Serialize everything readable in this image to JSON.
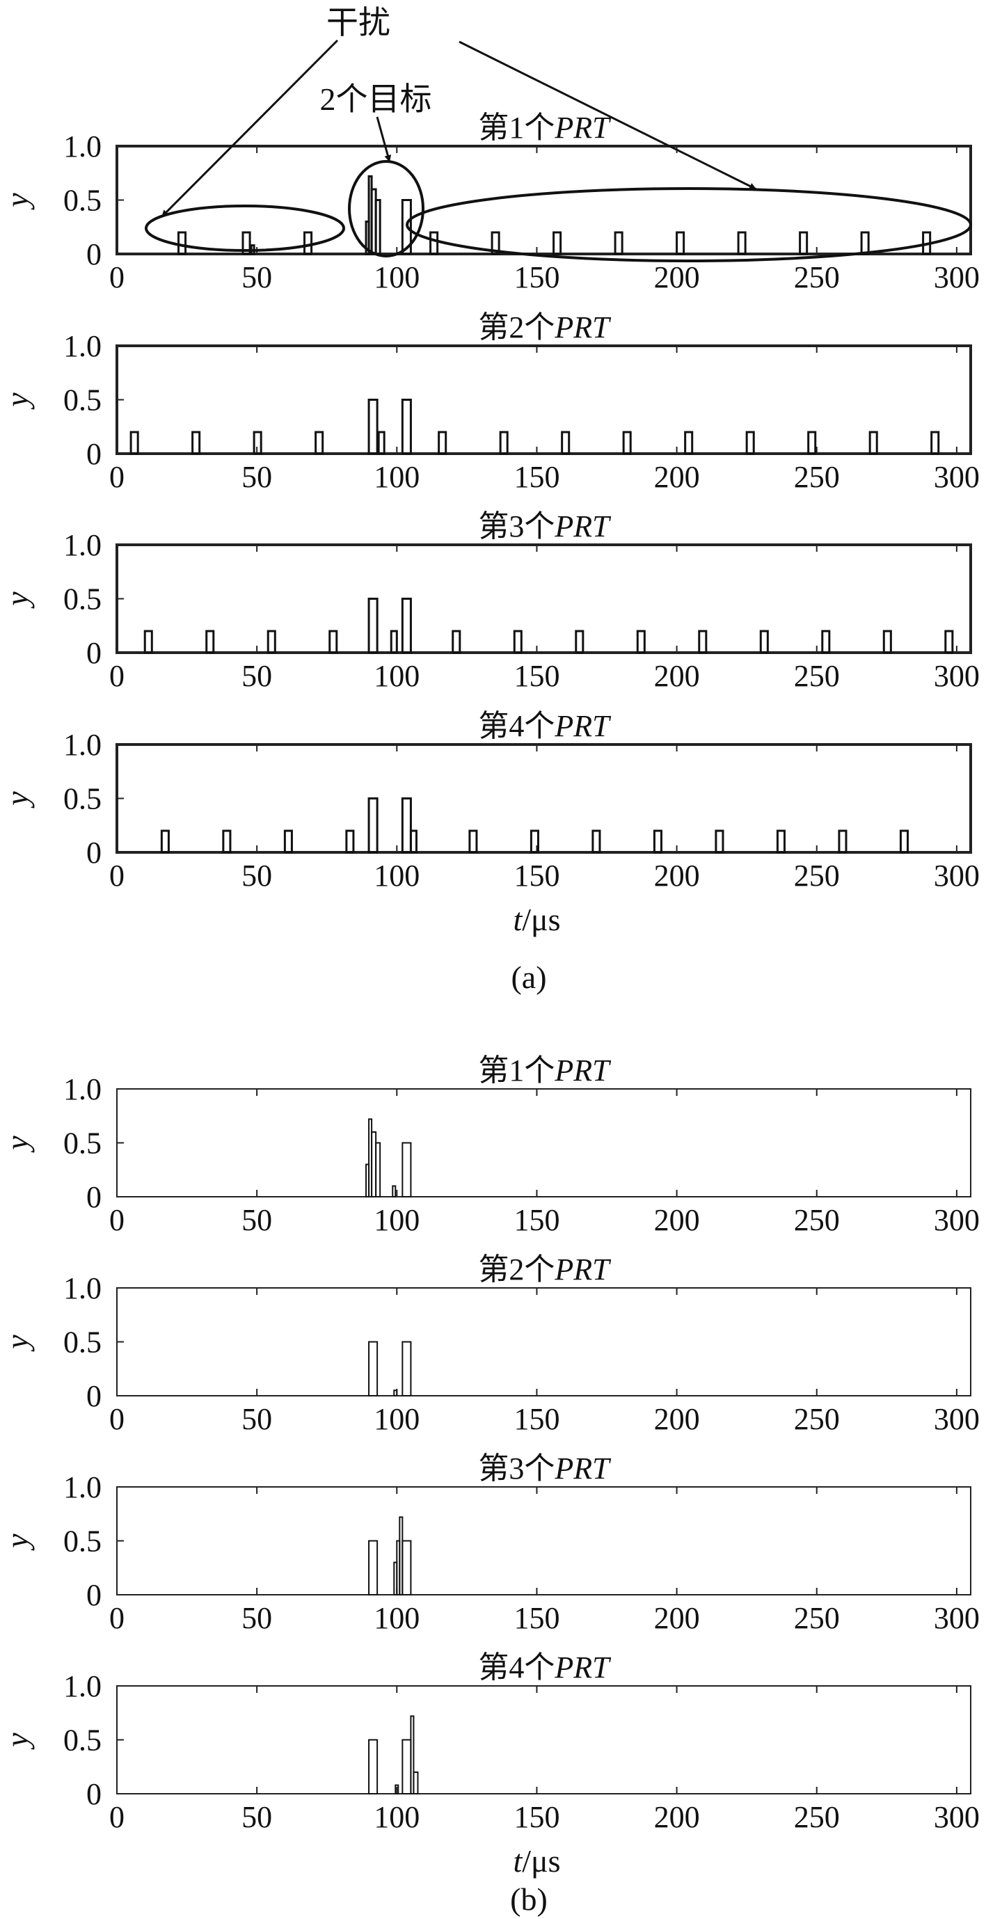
{
  "annotations": {
    "interference": "干扰",
    "two_targets": "2个目标"
  },
  "chart_data": [
    {
      "group": "a",
      "type": "line",
      "title_prefix": "第1个",
      "title_emph": "PRT",
      "ylabel": "y",
      "xlabel": "",
      "xlim": [
        0,
        305
      ],
      "ylim": [
        0,
        1.0
      ],
      "yticks": [
        "0",
        "0.5",
        "1.0"
      ],
      "xticks": [
        "0",
        "50",
        "100",
        "150",
        "200",
        "250",
        "300"
      ],
      "pulses": [
        {
          "x": 22,
          "w": 2.5,
          "h": 0.2
        },
        {
          "x": 45,
          "w": 2.5,
          "h": 0.2
        },
        {
          "x": 48,
          "w": 1,
          "h": 0.08
        },
        {
          "x": 67,
          "w": 2.5,
          "h": 0.2
        },
        {
          "x": 89,
          "w": 1,
          "h": 0.3
        },
        {
          "x": 90,
          "w": 1,
          "h": 0.72
        },
        {
          "x": 91,
          "w": 1.5,
          "h": 0.6
        },
        {
          "x": 92.5,
          "w": 1.5,
          "h": 0.5
        },
        {
          "x": 102,
          "w": 3,
          "h": 0.5
        },
        {
          "x": 112,
          "w": 2.5,
          "h": 0.2
        },
        {
          "x": 134,
          "w": 2.5,
          "h": 0.2
        },
        {
          "x": 156,
          "w": 2.5,
          "h": 0.2
        },
        {
          "x": 178,
          "w": 2.5,
          "h": 0.2
        },
        {
          "x": 200,
          "w": 2.5,
          "h": 0.2
        },
        {
          "x": 222,
          "w": 2.5,
          "h": 0.2
        },
        {
          "x": 244,
          "w": 2.5,
          "h": 0.2
        },
        {
          "x": 266,
          "w": 2.5,
          "h": 0.2
        },
        {
          "x": 288,
          "w": 2.5,
          "h": 0.2
        }
      ]
    },
    {
      "group": "a",
      "type": "line",
      "title_prefix": "第2个",
      "title_emph": "PRT",
      "ylabel": "y",
      "xlabel": "",
      "xlim": [
        0,
        305
      ],
      "ylim": [
        0,
        1.0
      ],
      "yticks": [
        "0",
        "0.5",
        "1.0"
      ],
      "xticks": [
        "0",
        "50",
        "100",
        "150",
        "200",
        "250",
        "300"
      ],
      "pulses": [
        {
          "x": 5,
          "w": 2.5,
          "h": 0.2
        },
        {
          "x": 27,
          "w": 2.5,
          "h": 0.2
        },
        {
          "x": 49,
          "w": 2.5,
          "h": 0.2
        },
        {
          "x": 71,
          "w": 2.5,
          "h": 0.2
        },
        {
          "x": 90,
          "w": 3,
          "h": 0.5
        },
        {
          "x": 93.5,
          "w": 2,
          "h": 0.2
        },
        {
          "x": 102,
          "w": 3,
          "h": 0.5
        },
        {
          "x": 115,
          "w": 2.5,
          "h": 0.2
        },
        {
          "x": 137,
          "w": 2.5,
          "h": 0.2
        },
        {
          "x": 159,
          "w": 2.5,
          "h": 0.2
        },
        {
          "x": 181,
          "w": 2.5,
          "h": 0.2
        },
        {
          "x": 203,
          "w": 2.5,
          "h": 0.2
        },
        {
          "x": 225,
          "w": 2.5,
          "h": 0.2
        },
        {
          "x": 247,
          "w": 2.5,
          "h": 0.2
        },
        {
          "x": 269,
          "w": 2.5,
          "h": 0.2
        },
        {
          "x": 291,
          "w": 2.5,
          "h": 0.2
        }
      ]
    },
    {
      "group": "a",
      "type": "line",
      "title_prefix": "第3个",
      "title_emph": "PRT",
      "ylabel": "y",
      "xlabel": "",
      "xlim": [
        0,
        305
      ],
      "ylim": [
        0,
        1.0
      ],
      "yticks": [
        "0",
        "0.5",
        "1.0"
      ],
      "xticks": [
        "0",
        "50",
        "100",
        "150",
        "200",
        "250",
        "300"
      ],
      "pulses": [
        {
          "x": 10,
          "w": 2.5,
          "h": 0.2
        },
        {
          "x": 32,
          "w": 2.5,
          "h": 0.2
        },
        {
          "x": 54,
          "w": 2.5,
          "h": 0.2
        },
        {
          "x": 76,
          "w": 2.5,
          "h": 0.2
        },
        {
          "x": 90,
          "w": 3,
          "h": 0.5
        },
        {
          "x": 98,
          "w": 2,
          "h": 0.2
        },
        {
          "x": 102,
          "w": 3,
          "h": 0.5
        },
        {
          "x": 120,
          "w": 2.5,
          "h": 0.2
        },
        {
          "x": 142,
          "w": 2.5,
          "h": 0.2
        },
        {
          "x": 164,
          "w": 2.5,
          "h": 0.2
        },
        {
          "x": 186,
          "w": 2.5,
          "h": 0.2
        },
        {
          "x": 208,
          "w": 2.5,
          "h": 0.2
        },
        {
          "x": 230,
          "w": 2.5,
          "h": 0.2
        },
        {
          "x": 252,
          "w": 2.5,
          "h": 0.2
        },
        {
          "x": 274,
          "w": 2.5,
          "h": 0.2
        },
        {
          "x": 296,
          "w": 2.5,
          "h": 0.2
        }
      ]
    },
    {
      "group": "a",
      "type": "line",
      "title_prefix": "第4个",
      "title_emph": "PRT",
      "ylabel": "y",
      "xlabel": "t/μs",
      "xlim": [
        0,
        305
      ],
      "ylim": [
        0,
        1.0
      ],
      "yticks": [
        "0",
        "0.5",
        "1.0"
      ],
      "xticks": [
        "0",
        "50",
        "100",
        "150",
        "200",
        "250",
        "300"
      ],
      "pulses": [
        {
          "x": 16,
          "w": 2.5,
          "h": 0.2
        },
        {
          "x": 38,
          "w": 2.5,
          "h": 0.2
        },
        {
          "x": 60,
          "w": 2.5,
          "h": 0.2
        },
        {
          "x": 82,
          "w": 2.5,
          "h": 0.2
        },
        {
          "x": 90,
          "w": 3,
          "h": 0.5
        },
        {
          "x": 102,
          "w": 3,
          "h": 0.5
        },
        {
          "x": 105,
          "w": 2,
          "h": 0.2
        },
        {
          "x": 126,
          "w": 2.5,
          "h": 0.2
        },
        {
          "x": 148,
          "w": 2.5,
          "h": 0.2
        },
        {
          "x": 170,
          "w": 2.5,
          "h": 0.2
        },
        {
          "x": 192,
          "w": 2.5,
          "h": 0.2
        },
        {
          "x": 214,
          "w": 2.5,
          "h": 0.2
        },
        {
          "x": 236,
          "w": 2.5,
          "h": 0.2
        },
        {
          "x": 258,
          "w": 2.5,
          "h": 0.2
        },
        {
          "x": 280,
          "w": 2.5,
          "h": 0.2
        }
      ]
    },
    {
      "group": "b",
      "type": "line",
      "title_prefix": "第1个",
      "title_emph": "PRT",
      "ylabel": "y",
      "xlabel": "",
      "xlim": [
        0,
        305
      ],
      "ylim": [
        0,
        1.0
      ],
      "yticks": [
        "0",
        "0.5",
        "1.0"
      ],
      "xticks": [
        "0",
        "50",
        "100",
        "150",
        "200",
        "250",
        "300"
      ],
      "pulses": [
        {
          "x": 89,
          "w": 1,
          "h": 0.3
        },
        {
          "x": 90,
          "w": 1,
          "h": 0.72
        },
        {
          "x": 91,
          "w": 1.5,
          "h": 0.6
        },
        {
          "x": 92.5,
          "w": 1.5,
          "h": 0.5
        },
        {
          "x": 98.5,
          "w": 1,
          "h": 0.1
        },
        {
          "x": 102,
          "w": 3,
          "h": 0.5
        }
      ]
    },
    {
      "group": "b",
      "type": "line",
      "title_prefix": "第2个",
      "title_emph": "PRT",
      "ylabel": "y",
      "xlabel": "",
      "xlim": [
        0,
        305
      ],
      "ylim": [
        0,
        1.0
      ],
      "yticks": [
        "0",
        "0.5",
        "1.0"
      ],
      "xticks": [
        "0",
        "50",
        "100",
        "150",
        "200",
        "250",
        "300"
      ],
      "pulses": [
        {
          "x": 90,
          "w": 3,
          "h": 0.5
        },
        {
          "x": 99,
          "w": 1,
          "h": 0.05
        },
        {
          "x": 102,
          "w": 3,
          "h": 0.5
        }
      ]
    },
    {
      "group": "b",
      "type": "line",
      "title_prefix": "第3个",
      "title_emph": "PRT",
      "ylabel": "y",
      "xlabel": "",
      "xlim": [
        0,
        305
      ],
      "ylim": [
        0,
        1.0
      ],
      "yticks": [
        "0",
        "0.5",
        "1.0"
      ],
      "xticks": [
        "0",
        "50",
        "100",
        "150",
        "200",
        "250",
        "300"
      ],
      "pulses": [
        {
          "x": 90,
          "w": 3,
          "h": 0.5
        },
        {
          "x": 99,
          "w": 1,
          "h": 0.3
        },
        {
          "x": 100,
          "w": 1,
          "h": 0.5
        },
        {
          "x": 101,
          "w": 1,
          "h": 0.72
        },
        {
          "x": 102,
          "w": 3,
          "h": 0.5
        }
      ]
    },
    {
      "group": "b",
      "type": "line",
      "title_prefix": "第4个",
      "title_emph": "PRT",
      "ylabel": "y",
      "xlabel": "t/μs",
      "xlim": [
        0,
        305
      ],
      "ylim": [
        0,
        1.0
      ],
      "yticks": [
        "0",
        "0.5",
        "1.0"
      ],
      "xticks": [
        "0",
        "50",
        "100",
        "150",
        "200",
        "250",
        "300"
      ],
      "pulses": [
        {
          "x": 90,
          "w": 3,
          "h": 0.5
        },
        {
          "x": 99.5,
          "w": 1,
          "h": 0.08
        },
        {
          "x": 102,
          "w": 3,
          "h": 0.5
        },
        {
          "x": 105,
          "w": 1,
          "h": 0.72
        },
        {
          "x": 106,
          "w": 1.5,
          "h": 0.2
        }
      ]
    }
  ],
  "captions": [
    "(a)",
    "(b)"
  ]
}
